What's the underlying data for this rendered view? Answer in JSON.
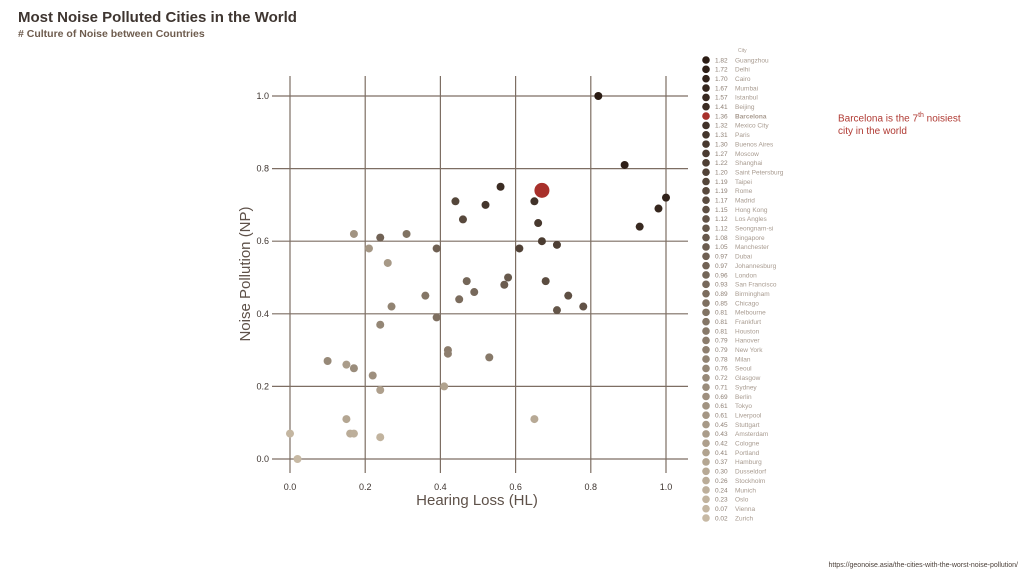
{
  "title": "Most Noise Polluted Cities in the World",
  "subtitle": "# Culture of Noise between Countries",
  "annotation": {
    "before": "Barcelona is the 7",
    "sup": "th",
    "after": " noisiest city in the world"
  },
  "source": "https://geonoise.asia/the-cities-with-the-worst-noise-pollution/",
  "colors": {
    "dark": "#2b1c14",
    "light": "#c7b9a4",
    "highlight": "#a8302b",
    "grid": "#7d6e63"
  },
  "chart_data": {
    "type": "scatter",
    "title": "Most Noise Polluted Cities in the World",
    "subtitle": "# Culture of Noise between Countries",
    "xlabel": "Hearing Loss (HL)",
    "ylabel": "Noise Pollution (NP)",
    "xlim": [
      0,
      1
    ],
    "ylim": [
      0,
      1
    ],
    "xticks": [
      0.0,
      0.2,
      0.4,
      0.6,
      0.8,
      1.0
    ],
    "yticks": [
      0.0,
      0.2,
      0.4,
      0.6,
      0.8,
      1.0
    ],
    "xtick_labels": [
      "0.0",
      "0.2",
      "0.4",
      "0.6",
      "0.8",
      "1.0"
    ],
    "ytick_labels": [
      "0.0",
      "0.2",
      "0.4",
      "0.6",
      "0.8",
      "1.0"
    ],
    "grid": true,
    "legend_title": "City",
    "legend_position": "right",
    "highlight": "Barcelona",
    "points": [
      {
        "city": "Guangzhou",
        "score": "1.82",
        "x": 0.82,
        "y": 1.0
      },
      {
        "city": "Delhi",
        "score": "1.72",
        "x": 0.89,
        "y": 0.81
      },
      {
        "city": "Cairo",
        "score": "1.70",
        "x": 1.0,
        "y": 0.72
      },
      {
        "city": "Mumbai",
        "score": "1.67",
        "x": 0.98,
        "y": 0.69
      },
      {
        "city": "Istanbul",
        "score": "1.57",
        "x": 0.93,
        "y": 0.64
      },
      {
        "city": "Beijing",
        "score": "1.41",
        "x": 0.56,
        "y": 0.75
      },
      {
        "city": "Barcelona",
        "score": "1.36",
        "x": 0.67,
        "y": 0.74
      },
      {
        "city": "Mexico City",
        "score": "1.32",
        "x": 0.65,
        "y": 0.71
      },
      {
        "city": "Paris",
        "score": "1.31",
        "x": 0.52,
        "y": 0.7
      },
      {
        "city": "Buenos Aires",
        "score": "1.30",
        "x": 0.66,
        "y": 0.65
      },
      {
        "city": "Moscow",
        "score": "1.27",
        "x": 0.67,
        "y": 0.6
      },
      {
        "city": "Shanghai",
        "score": "1.22",
        "x": 0.71,
        "y": 0.59
      },
      {
        "city": "Saint Petersburg",
        "score": "1.20",
        "x": 0.61,
        "y": 0.58
      },
      {
        "city": "Taipei",
        "score": "1.19",
        "x": 0.44,
        "y": 0.71
      },
      {
        "city": "Rome",
        "score": "1.19",
        "x": 0.46,
        "y": 0.66
      },
      {
        "city": "Madrid",
        "score": "1.17",
        "x": 0.68,
        "y": 0.49
      },
      {
        "city": "Hong Kong",
        "score": "1.15",
        "x": 0.74,
        "y": 0.45
      },
      {
        "city": "Los Angles",
        "score": "1.12",
        "x": 0.78,
        "y": 0.42
      },
      {
        "city": "Seongnam-si",
        "score": "1.12",
        "x": 0.71,
        "y": 0.41
      },
      {
        "city": "Singapore",
        "score": "1.08",
        "x": 0.58,
        "y": 0.5
      },
      {
        "city": "Manchester",
        "score": "1.05",
        "x": 0.57,
        "y": 0.48
      },
      {
        "city": "Dubai",
        "score": "0.97",
        "x": 0.39,
        "y": 0.58
      },
      {
        "city": "Johannesburg",
        "score": "0.97",
        "x": 0.24,
        "y": 0.61
      },
      {
        "city": "London",
        "score": "0.96",
        "x": 0.47,
        "y": 0.49
      },
      {
        "city": "San Francisco",
        "score": "0.93",
        "x": 0.49,
        "y": 0.46
      },
      {
        "city": "Birmingham",
        "score": "0.89",
        "x": 0.45,
        "y": 0.44
      },
      {
        "city": "Chicago",
        "score": "0.85",
        "x": 0.39,
        "y": 0.39
      },
      {
        "city": "Melbourne",
        "score": "0.81",
        "x": 0.31,
        "y": 0.62
      },
      {
        "city": "Frankfurt",
        "score": "0.81",
        "x": 0.36,
        "y": 0.45
      },
      {
        "city": "Houston",
        "score": "0.81",
        "x": 0.53,
        "y": 0.28
      },
      {
        "city": "Hanover",
        "score": "0.79",
        "x": 0.42,
        "y": 0.3
      },
      {
        "city": "New York",
        "score": "0.79",
        "x": 0.42,
        "y": 0.29
      },
      {
        "city": "Milan",
        "score": "0.78",
        "x": 0.27,
        "y": 0.42
      },
      {
        "city": "Seoul",
        "score": "0.76",
        "x": 0.24,
        "y": 0.37
      },
      {
        "city": "Glasgow",
        "score": "0.72",
        "x": 0.1,
        "y": 0.27
      },
      {
        "city": "Sydney",
        "score": "0.71",
        "x": 0.17,
        "y": 0.25
      },
      {
        "city": "Berlin",
        "score": "0.69",
        "x": 0.22,
        "y": 0.23
      },
      {
        "city": "Tokyo",
        "score": "0.61",
        "x": 0.17,
        "y": 0.62
      },
      {
        "city": "Liverpool",
        "score": "0.61",
        "x": 0.21,
        "y": 0.58
      },
      {
        "city": "Stuttgart",
        "score": "0.45",
        "x": 0.26,
        "y": 0.54
      },
      {
        "city": "Amsterdam",
        "score": "0.43",
        "x": 0.15,
        "y": 0.26
      },
      {
        "city": "Cologne",
        "score": "0.42",
        "x": 0.24,
        "y": 0.19
      },
      {
        "city": "Portland",
        "score": "0.41",
        "x": 0.41,
        "y": 0.2
      },
      {
        "city": "Hamburg",
        "score": "0.37",
        "x": 0.15,
        "y": 0.11
      },
      {
        "city": "Dusseldorf",
        "score": "0.30",
        "x": 0.65,
        "y": 0.11
      },
      {
        "city": "Stockholm",
        "score": "0.26",
        "x": 0.16,
        "y": 0.07
      },
      {
        "city": "Munich",
        "score": "0.24",
        "x": 0.17,
        "y": 0.07
      },
      {
        "city": "Oslo",
        "score": "0.23",
        "x": 0.24,
        "y": 0.06
      },
      {
        "city": "Vienna",
        "score": "0.07",
        "x": 0.0,
        "y": 0.07
      },
      {
        "city": "Zurich",
        "score": "0.02",
        "x": 0.02,
        "y": 0.0
      }
    ]
  }
}
